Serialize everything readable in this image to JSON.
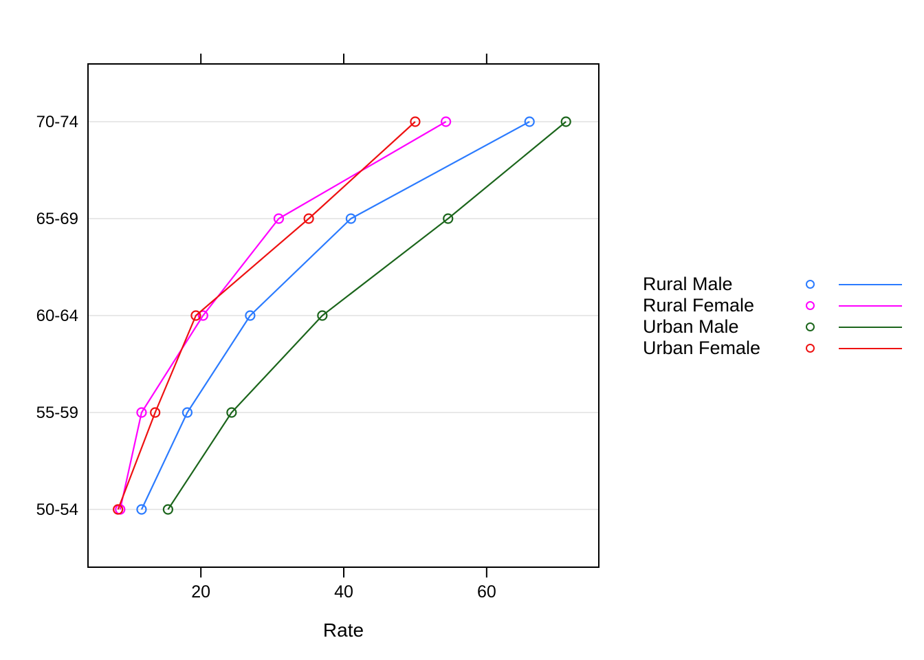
{
  "chart_data": {
    "type": "line",
    "orientation": "horizontal",
    "title": "",
    "xlabel": "Rate",
    "ylabel": "",
    "categories": [
      "50-54",
      "55-59",
      "60-64",
      "65-69",
      "70-74"
    ],
    "categories_note": "listed bottom-to-top on the y axis",
    "series": [
      {
        "name": "Rural Male",
        "color": "#2B7BFF",
        "values": [
          11.7,
          18.1,
          26.9,
          41.0,
          66.0
        ]
      },
      {
        "name": "Rural Female",
        "color": "#FF00FF",
        "values": [
          8.7,
          11.7,
          20.3,
          30.9,
          54.3
        ]
      },
      {
        "name": "Urban Male",
        "color": "#1B651B",
        "values": [
          15.4,
          24.3,
          37.0,
          54.6,
          71.1
        ]
      },
      {
        "name": "Urban Female",
        "color": "#EE1111",
        "values": [
          8.4,
          13.6,
          19.3,
          35.1,
          50.0
        ]
      }
    ],
    "x_ticks": [
      20,
      40,
      60
    ],
    "xlim": [
      4.2,
      75.7
    ],
    "grid": "horizontal-gridlines",
    "gridline_color": "#E8E8E8",
    "box_color": "#000000",
    "text_color": "#000000",
    "legend_position": "right",
    "marker": "open-circle",
    "tick_sides": "top-and-bottom"
  }
}
